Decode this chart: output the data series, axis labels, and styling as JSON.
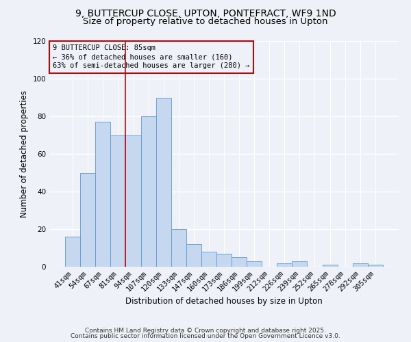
{
  "title": "9, BUTTERCUP CLOSE, UPTON, PONTEFRACT, WF9 1ND",
  "subtitle": "Size of property relative to detached houses in Upton",
  "xlabel": "Distribution of detached houses by size in Upton",
  "ylabel": "Number of detached properties",
  "categories": [
    "41sqm",
    "54sqm",
    "67sqm",
    "81sqm",
    "94sqm",
    "107sqm",
    "120sqm",
    "133sqm",
    "147sqm",
    "160sqm",
    "173sqm",
    "186sqm",
    "199sqm",
    "212sqm",
    "226sqm",
    "239sqm",
    "252sqm",
    "265sqm",
    "278sqm",
    "292sqm",
    "305sqm"
  ],
  "values": [
    16,
    50,
    77,
    70,
    70,
    80,
    90,
    20,
    12,
    8,
    7,
    5,
    3,
    0,
    2,
    3,
    0,
    1,
    0,
    2,
    1
  ],
  "bar_color": "#c5d8f0",
  "bar_edge_color": "#5b9bd5",
  "ylim": [
    0,
    120
  ],
  "yticks": [
    0,
    20,
    40,
    60,
    80,
    100,
    120
  ],
  "vline_x": 3.5,
  "vline_color": "#cc0000",
  "annotation_title": "9 BUTTERCUP CLOSE: 85sqm",
  "annotation_line1": "← 36% of detached houses are smaller (160)",
  "annotation_line2": "63% of semi-detached houses are larger (280) →",
  "annotation_box_color": "#cc0000",
  "footer1": "Contains HM Land Registry data © Crown copyright and database right 2025.",
  "footer2": "Contains public sector information licensed under the Open Government Licence v3.0.",
  "background_color": "#eef2f8",
  "grid_color": "#ffffff",
  "title_fontsize": 10,
  "subtitle_fontsize": 9.5,
  "axis_label_fontsize": 8.5,
  "tick_fontsize": 7.5,
  "annotation_fontsize": 7.5,
  "footer_fontsize": 6.5
}
